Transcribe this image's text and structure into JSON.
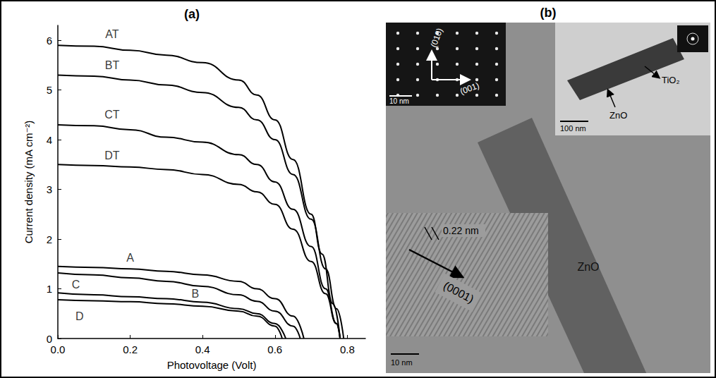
{
  "chart_data": {
    "type": "line",
    "title": "(a)",
    "x_label": "Photovoltage (Volt)",
    "y_label": "Current density (mA cm⁻²)",
    "xlim": [
      0,
      0.85
    ],
    "xticks": [
      {
        "value": 0,
        "label": "0.0"
      },
      {
        "value": 0.2,
        "label": "0.2"
      },
      {
        "value": 0.4,
        "label": "0.4"
      },
      {
        "value": 0.6,
        "label": "0.6"
      },
      {
        "value": 0.8,
        "label": "0.8"
      }
    ],
    "ylim": [
      0,
      6.3
    ],
    "yticks": [
      0,
      1,
      2,
      3,
      4,
      5,
      6
    ],
    "grid": false,
    "marker": "none",
    "line_style": "solid",
    "series": [
      {
        "name": "AT",
        "color": "#000000",
        "label_at": [
          0.15,
          6.12
        ],
        "x": [
          0,
          0.1,
          0.2,
          0.3,
          0.4,
          0.5,
          0.55,
          0.6,
          0.65,
          0.7,
          0.73,
          0.76,
          0.78
        ],
        "values": [
          5.9,
          5.88,
          5.8,
          5.7,
          5.55,
          5.2,
          4.9,
          4.4,
          3.6,
          2.5,
          1.7,
          0.7,
          0
        ]
      },
      {
        "name": "BT",
        "color": "#000000",
        "label_at": [
          0.15,
          5.5
        ],
        "x": [
          0,
          0.1,
          0.2,
          0.3,
          0.4,
          0.5,
          0.55,
          0.6,
          0.65,
          0.7,
          0.74,
          0.77,
          0.79
        ],
        "values": [
          5.3,
          5.28,
          5.2,
          5.1,
          4.95,
          4.65,
          4.4,
          4.0,
          3.3,
          2.4,
          1.4,
          0.6,
          0
        ]
      },
      {
        "name": "CT",
        "color": "#000000",
        "label_at": [
          0.15,
          4.5
        ],
        "x": [
          0,
          0.1,
          0.2,
          0.3,
          0.4,
          0.5,
          0.55,
          0.6,
          0.65,
          0.7,
          0.74,
          0.77,
          0.78
        ],
        "values": [
          4.3,
          4.28,
          4.2,
          4.05,
          3.95,
          3.7,
          3.5,
          3.15,
          2.6,
          1.85,
          1.0,
          0.3,
          0
        ]
      },
      {
        "name": "DT",
        "color": "#000000",
        "label_at": [
          0.15,
          3.68
        ],
        "x": [
          0,
          0.1,
          0.2,
          0.3,
          0.4,
          0.5,
          0.55,
          0.6,
          0.65,
          0.7,
          0.74,
          0.77,
          0.78
        ],
        "values": [
          3.5,
          3.48,
          3.45,
          3.4,
          3.3,
          3.1,
          2.95,
          2.7,
          2.2,
          1.55,
          0.9,
          0.3,
          0
        ]
      },
      {
        "name": "A",
        "color": "#000000",
        "label_at": [
          0.2,
          1.62
        ],
        "x": [
          0,
          0.1,
          0.2,
          0.3,
          0.4,
          0.5,
          0.55,
          0.6,
          0.65,
          0.68
        ],
        "values": [
          1.45,
          1.43,
          1.4,
          1.35,
          1.28,
          1.15,
          1.0,
          0.8,
          0.45,
          0
        ]
      },
      {
        "name": "B",
        "color": "#000000",
        "label_at": [
          0.38,
          0.9
        ],
        "x": [
          0,
          0.1,
          0.2,
          0.3,
          0.4,
          0.5,
          0.55,
          0.6,
          0.65,
          0.67
        ],
        "values": [
          1.32,
          1.28,
          1.22,
          1.15,
          1.05,
          0.88,
          0.75,
          0.55,
          0.25,
          0
        ]
      },
      {
        "name": "C",
        "color": "#000000",
        "label_at": [
          0.05,
          1.08
        ],
        "x": [
          0,
          0.1,
          0.2,
          0.3,
          0.4,
          0.5,
          0.55,
          0.6,
          0.63
        ],
        "values": [
          0.92,
          0.88,
          0.84,
          0.8,
          0.73,
          0.6,
          0.5,
          0.3,
          0
        ]
      },
      {
        "name": "D",
        "color": "#000000",
        "label_at": [
          0.06,
          0.45
        ],
        "x": [
          0,
          0.1,
          0.2,
          0.3,
          0.4,
          0.5,
          0.55,
          0.6,
          0.62
        ],
        "values": [
          0.78,
          0.76,
          0.74,
          0.7,
          0.65,
          0.55,
          0.45,
          0.25,
          0
        ]
      }
    ]
  },
  "image_panel": {
    "title": "(b)",
    "main_label": "ZnO",
    "scale_bar": "10 nm",
    "inset_diffraction": {
      "labels": [
        "(010)",
        "(001)"
      ],
      "scale_bar": "10 nm"
    },
    "inset_lattice": {
      "spacing": "0.22 nm",
      "direction": "(0001)"
    },
    "inset_rod": {
      "labels": [
        "TiO₂",
        "ZnO"
      ],
      "scale_bar": "100 nm"
    }
  }
}
